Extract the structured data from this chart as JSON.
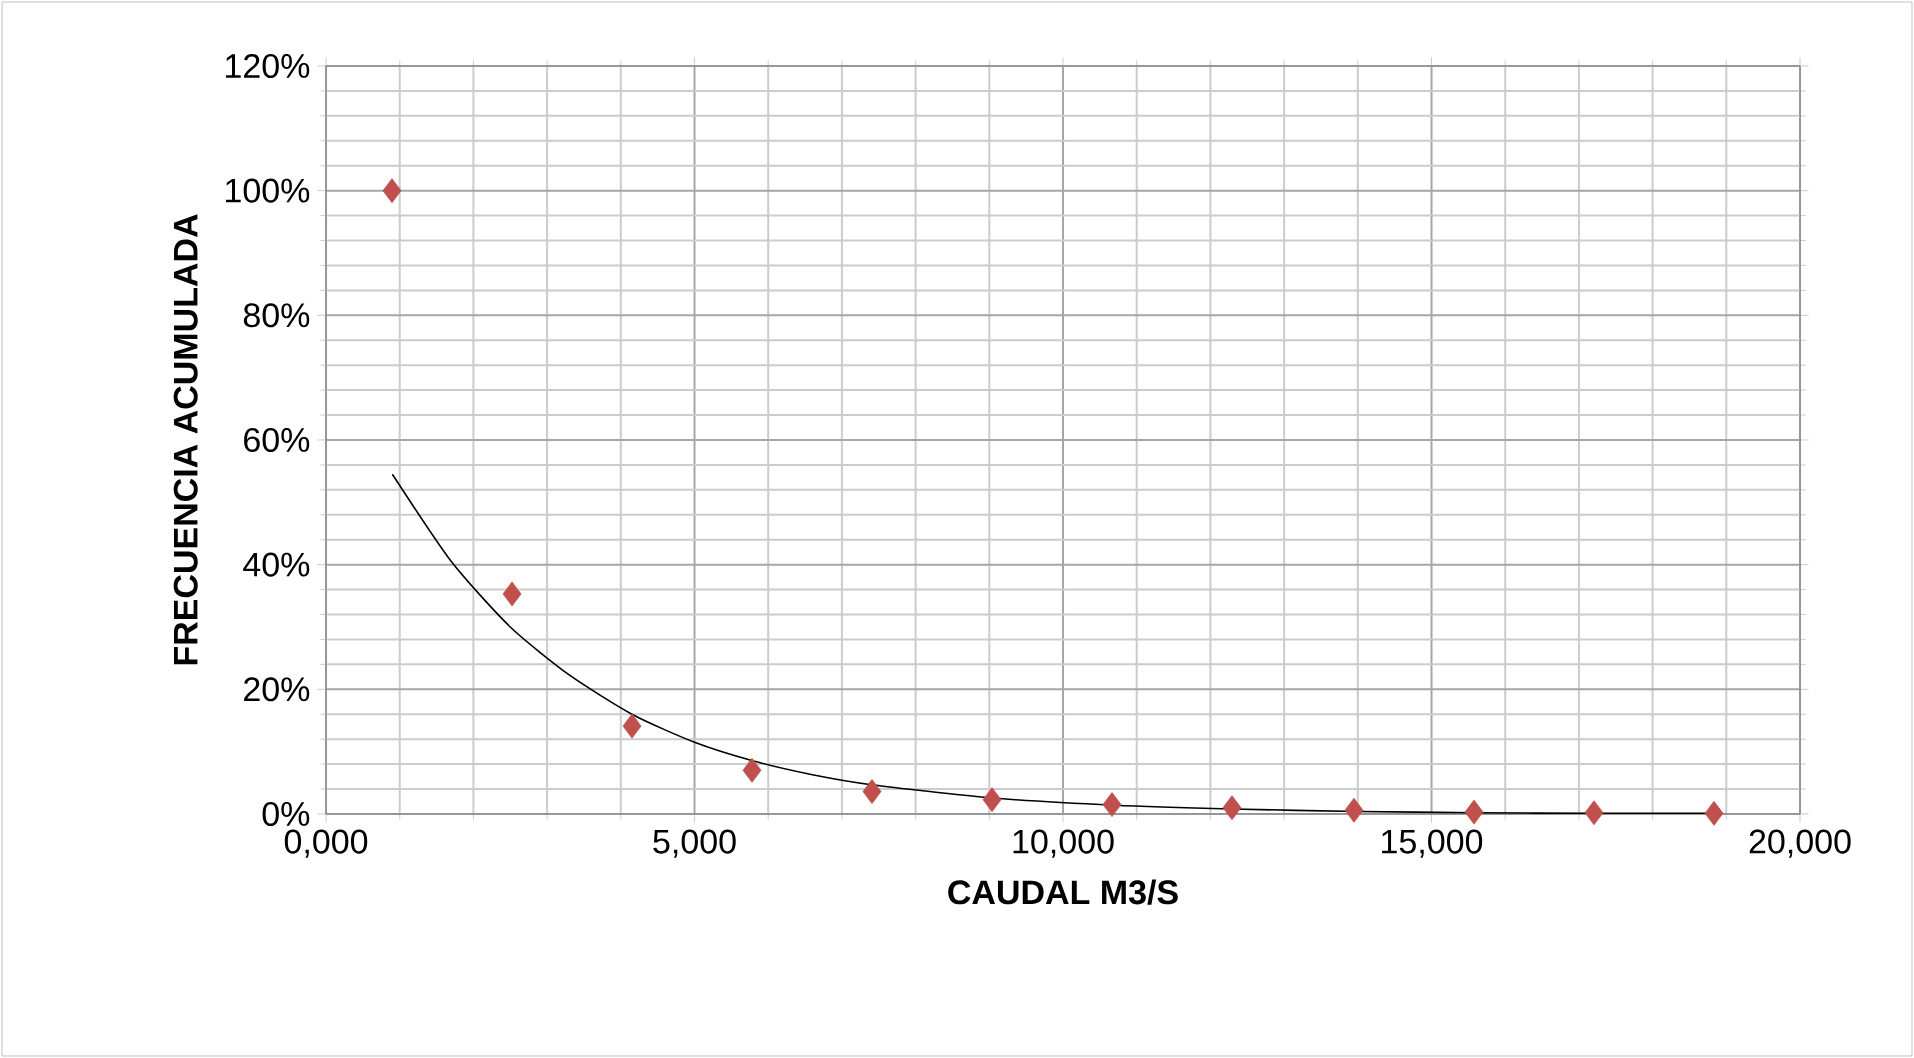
{
  "chart_data": {
    "type": "scatter",
    "xlabel": "CAUDAL M3/S",
    "ylabel": "FRECUENCIA ACUMULADA",
    "xlim": [
      0,
      20000
    ],
    "ylim": [
      0,
      120
    ],
    "xticks": [
      {
        "value": 0,
        "label": "0,000"
      },
      {
        "value": 5000,
        "label": "5,000"
      },
      {
        "value": 10000,
        "label": "10,000"
      },
      {
        "value": 15000,
        "label": "15,000"
      },
      {
        "value": 20000,
        "label": "20,000"
      }
    ],
    "yticks": [
      {
        "value": 0,
        "label": "0%"
      },
      {
        "value": 20,
        "label": "20%"
      },
      {
        "value": 40,
        "label": "40%"
      },
      {
        "value": 60,
        "label": "60%"
      },
      {
        "value": 80,
        "label": "80%"
      },
      {
        "value": 100,
        "label": "100%"
      },
      {
        "value": 120,
        "label": "120%"
      }
    ],
    "grid": true,
    "series": [
      {
        "type": "scatter",
        "marker": "diamond",
        "color": "#c0504d",
        "x": [
          895,
          2524,
          4152,
          5780,
          7408,
          9037,
          10665,
          12293,
          13948,
          15577,
          17205,
          18833
        ],
        "values": [
          100,
          35.3,
          14.1,
          7,
          3.6,
          2.3,
          1.5,
          1,
          0.6,
          0.3,
          0.2,
          0.1
        ]
      },
      {
        "type": "line",
        "marker": "none",
        "line_style": "solid",
        "color": "#000000",
        "x": [
          900,
          1700,
          2500,
          3300,
          4150,
          5000,
          5800,
          6600,
          7400,
          9000,
          10700,
          12300,
          14000,
          15600,
          17200,
          18800
        ],
        "values": [
          54.5,
          40.5,
          30,
          22.3,
          16,
          11.5,
          8.5,
          6.3,
          4.7,
          2.6,
          1.4,
          0.8,
          0.4,
          0.2,
          0.1,
          0.1
        ]
      }
    ]
  }
}
